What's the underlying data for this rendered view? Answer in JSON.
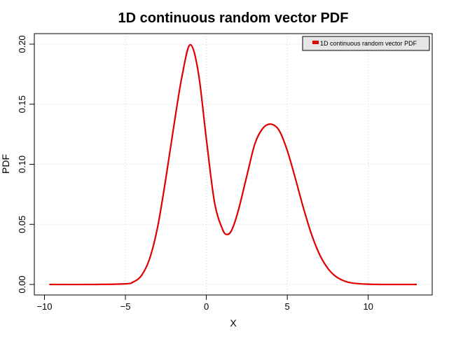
{
  "chart_data": {
    "type": "line",
    "title": "1D continuous random vector PDF",
    "xlabel": "X",
    "ylabel": "PDF",
    "xlim": [
      -10,
      13
    ],
    "ylim": [
      0,
      0.2
    ],
    "x_ticks": [
      -10,
      -5,
      0,
      5,
      10
    ],
    "y_ticks": [
      0.0,
      0.05,
      0.1,
      0.15,
      0.2
    ],
    "x_tick_labels": [
      "−10",
      "−5",
      "0",
      "5",
      "10"
    ],
    "y_tick_labels": [
      "0.00",
      "0.05",
      "0.10",
      "0.15",
      "0.20"
    ],
    "grid": true,
    "legend_position": "top-right",
    "series": [
      {
        "name": "1D continuous random vector PDF",
        "color": "#e00000",
        "x": [
          -9.7,
          -7,
          -5,
          -4.5,
          -4,
          -3.5,
          -3,
          -2.5,
          -2,
          -1.5,
          -1,
          -0.5,
          0,
          0.5,
          1,
          1.3,
          1.6,
          2,
          2.5,
          3,
          3.5,
          4,
          4.5,
          5,
          5.5,
          6,
          6.5,
          7,
          7.5,
          8,
          8.5,
          9,
          10,
          11,
          13
        ],
        "y": [
          0,
          0,
          0.0005,
          0.0022,
          0.0076,
          0.0216,
          0.0485,
          0.0885,
          0.1327,
          0.1736,
          0.1995,
          0.1768,
          0.121,
          0.0687,
          0.0459,
          0.0416,
          0.0462,
          0.0628,
          0.0903,
          0.1171,
          0.1301,
          0.1334,
          0.1281,
          0.1114,
          0.0882,
          0.0635,
          0.0416,
          0.0248,
          0.0135,
          0.0066,
          0.003,
          0.0012,
          0.0002,
          0,
          0
        ]
      }
    ]
  }
}
